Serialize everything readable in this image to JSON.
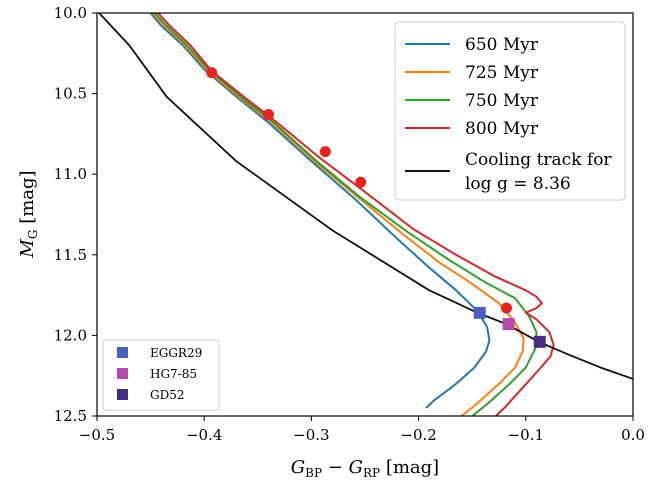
{
  "chart_data": {
    "type": "line",
    "xlabel_main": "G",
    "xlabel_sub1": "BP",
    "xlabel_mid": " − ",
    "xlabel_main2": "G",
    "xlabel_sub2": "RP",
    "xlabel_unit": " [mag]",
    "ylabel_main": "M",
    "ylabel_sub": "G",
    "ylabel_unit": " [mag]",
    "xlim": [
      -0.5,
      0.0
    ],
    "ylim": [
      12.5,
      10.0
    ],
    "y_inverted": true,
    "x_ticks": [
      -0.5,
      -0.4,
      -0.3,
      -0.2,
      -0.1,
      0.0
    ],
    "x_tick_labels": [
      "−0.5",
      "−0.4",
      "−0.3",
      "−0.2",
      "−0.1",
      "0.0"
    ],
    "y_ticks": [
      10.0,
      10.5,
      11.0,
      11.5,
      12.0,
      12.5
    ],
    "y_tick_labels": [
      "10.0",
      "10.5",
      "11.0",
      "11.5",
      "12.0",
      "12.5"
    ],
    "grid": false,
    "legend_placement": "top-right",
    "series": [
      {
        "name": "650 Myr",
        "color": "#1f77b4",
        "points": [
          [
            -0.45,
            10.0
          ],
          [
            -0.44,
            10.08
          ],
          [
            -0.42,
            10.2
          ],
          [
            -0.4,
            10.35
          ],
          [
            -0.37,
            10.52
          ],
          [
            -0.34,
            10.68
          ],
          [
            -0.3,
            10.92
          ],
          [
            -0.26,
            11.15
          ],
          [
            -0.22,
            11.4
          ],
          [
            -0.19,
            11.58
          ],
          [
            -0.165,
            11.72
          ],
          [
            -0.145,
            11.85
          ],
          [
            -0.136,
            11.95
          ],
          [
            -0.134,
            12.03
          ],
          [
            -0.137,
            12.1
          ],
          [
            -0.148,
            12.2
          ],
          [
            -0.165,
            12.3
          ],
          [
            -0.185,
            12.4
          ],
          [
            -0.193,
            12.45
          ]
        ]
      },
      {
        "name": "725 Myr",
        "color": "#ff7f0e",
        "points": [
          [
            -0.448,
            10.0
          ],
          [
            -0.437,
            10.08
          ],
          [
            -0.418,
            10.2
          ],
          [
            -0.398,
            10.35
          ],
          [
            -0.368,
            10.52
          ],
          [
            -0.337,
            10.68
          ],
          [
            -0.297,
            10.92
          ],
          [
            -0.257,
            11.14
          ],
          [
            -0.215,
            11.37
          ],
          [
            -0.18,
            11.55
          ],
          [
            -0.15,
            11.68
          ],
          [
            -0.125,
            11.8
          ],
          [
            -0.11,
            11.92
          ],
          [
            -0.102,
            12.02
          ],
          [
            -0.103,
            12.1
          ],
          [
            -0.11,
            12.2
          ],
          [
            -0.125,
            12.3
          ],
          [
            -0.145,
            12.42
          ],
          [
            -0.16,
            12.5
          ]
        ]
      },
      {
        "name": "750 Myr",
        "color": "#2ca02c",
        "points": [
          [
            -0.446,
            10.0
          ],
          [
            -0.435,
            10.08
          ],
          [
            -0.416,
            10.2
          ],
          [
            -0.396,
            10.35
          ],
          [
            -0.366,
            10.52
          ],
          [
            -0.335,
            10.68
          ],
          [
            -0.295,
            10.92
          ],
          [
            -0.255,
            11.14
          ],
          [
            -0.21,
            11.36
          ],
          [
            -0.172,
            11.53
          ],
          [
            -0.138,
            11.67
          ],
          [
            -0.11,
            11.77
          ],
          [
            -0.097,
            11.88
          ],
          [
            -0.09,
            11.98
          ],
          [
            -0.091,
            12.08
          ],
          [
            -0.1,
            12.2
          ],
          [
            -0.115,
            12.3
          ],
          [
            -0.135,
            12.42
          ],
          [
            -0.15,
            12.5
          ]
        ]
      },
      {
        "name": "800 Myr",
        "color": "#d62728",
        "points": [
          [
            -0.443,
            10.0
          ],
          [
            -0.432,
            10.08
          ],
          [
            -0.413,
            10.2
          ],
          [
            -0.393,
            10.36
          ],
          [
            -0.363,
            10.52
          ],
          [
            -0.332,
            10.68
          ],
          [
            -0.292,
            10.9
          ],
          [
            -0.252,
            11.1
          ],
          [
            -0.205,
            11.34
          ],
          [
            -0.165,
            11.5
          ],
          [
            -0.13,
            11.63
          ],
          [
            -0.1,
            11.72
          ],
          [
            -0.09,
            11.76
          ],
          [
            -0.085,
            11.8
          ],
          [
            -0.09,
            11.83
          ],
          [
            -0.1,
            11.86
          ],
          [
            -0.09,
            11.9
          ],
          [
            -0.078,
            11.98
          ],
          [
            -0.074,
            12.06
          ],
          [
            -0.077,
            12.13
          ],
          [
            -0.09,
            12.23
          ],
          [
            -0.105,
            12.34
          ],
          [
            -0.12,
            12.45
          ],
          [
            -0.128,
            12.5
          ]
        ]
      },
      {
        "name": "Cooling track for log g = 8.36",
        "legend_line1": "Cooling track for",
        "legend_line2": "log g = 8.36",
        "color": "#111111",
        "points": [
          [
            -0.498,
            10.0
          ],
          [
            -0.47,
            10.2
          ],
          [
            -0.435,
            10.52
          ],
          [
            -0.37,
            10.92
          ],
          [
            -0.28,
            11.35
          ],
          [
            -0.19,
            11.72
          ],
          [
            -0.145,
            11.86
          ],
          [
            -0.118,
            11.93
          ],
          [
            -0.088,
            12.04
          ],
          [
            -0.06,
            12.12
          ],
          [
            -0.03,
            12.2
          ],
          [
            0.0,
            12.27
          ]
        ]
      }
    ],
    "markers_age": {
      "color": "#e8221f",
      "points": [
        [
          -0.393,
          10.37
        ],
        [
          -0.34,
          10.63
        ],
        [
          -0.287,
          10.86
        ],
        [
          -0.254,
          11.05
        ],
        [
          -0.118,
          11.83
        ]
      ]
    },
    "markers_stars": [
      {
        "name": "EGGR29",
        "color": "#4c5fbf",
        "x": -0.143,
        "y": 11.86
      },
      {
        "name": "HG7-85",
        "color": "#b24aaa",
        "x": -0.116,
        "y": 11.93
      },
      {
        "name": "GD52",
        "color": "#4a2c82",
        "x": -0.087,
        "y": 12.04
      }
    ]
  }
}
